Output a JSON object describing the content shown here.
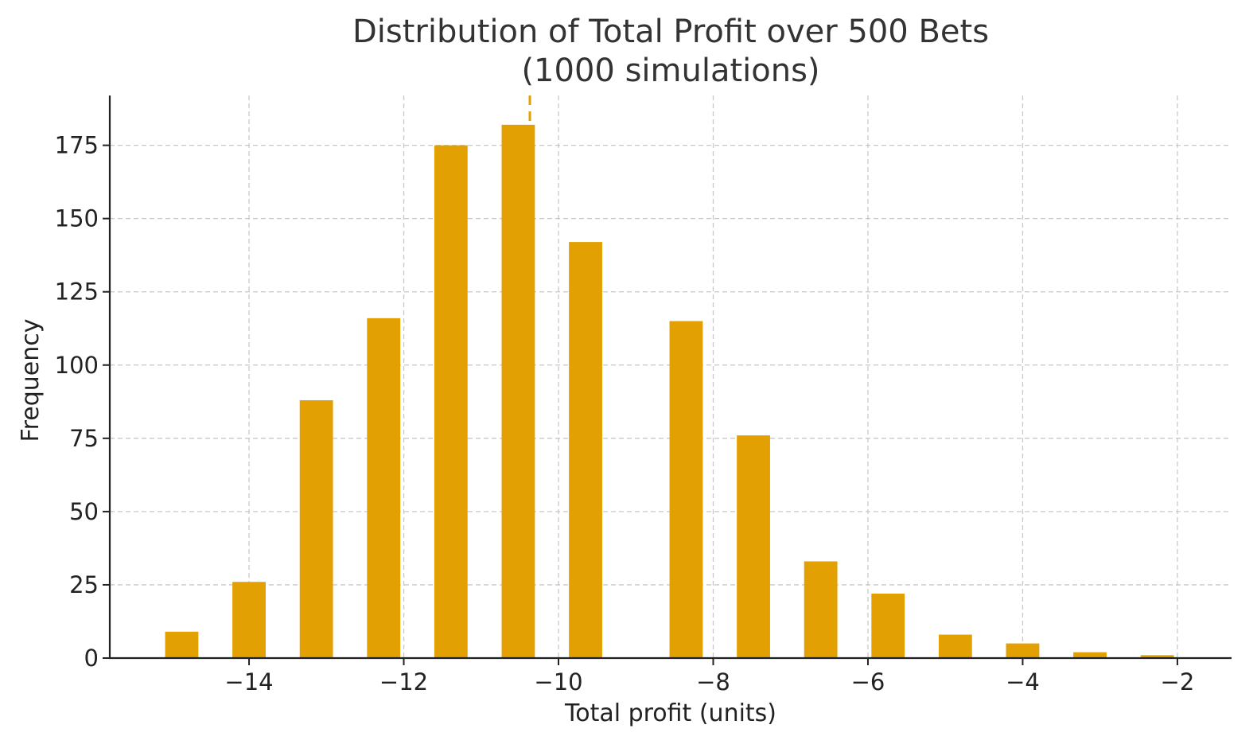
{
  "chart_data": {
    "type": "bar",
    "title": "Distribution of Total Profit over 500 Bets",
    "subtitle": "(1000 simulations)",
    "xlabel": "Total profit (units)",
    "ylabel": "Frequency",
    "xlim": [
      -15.8,
      -1.3
    ],
    "ylim": [
      0,
      192
    ],
    "xticks": [
      -14,
      -12,
      -10,
      -8,
      -6,
      -4,
      -2
    ],
    "xtick_labels": [
      "−14",
      "−12",
      "−10",
      "−8",
      "−6",
      "−4",
      "−2"
    ],
    "yticks": [
      0,
      25,
      50,
      75,
      100,
      125,
      150,
      175
    ],
    "ytick_labels": [
      "0",
      "25",
      "50",
      "75",
      "100",
      "125",
      "150",
      "175"
    ],
    "bin_width": 0.43,
    "x": [
      -14.87,
      -14.0,
      -13.13,
      -12.26,
      -11.39,
      -10.52,
      -9.65,
      -8.35,
      -7.48,
      -6.61,
      -5.74,
      -4.87,
      -4.0,
      -3.13,
      -2.26
    ],
    "values": [
      9,
      26,
      88,
      116,
      175,
      182,
      142,
      115,
      76,
      33,
      22,
      8,
      5,
      2,
      1
    ],
    "mean_line": {
      "x": -10.37,
      "style": "dashed"
    },
    "grid": true,
    "colors": {
      "bar": "#E3A003",
      "mean_line": "#E3A003",
      "grid": "#c8c8c8",
      "axis": "#222222"
    }
  }
}
